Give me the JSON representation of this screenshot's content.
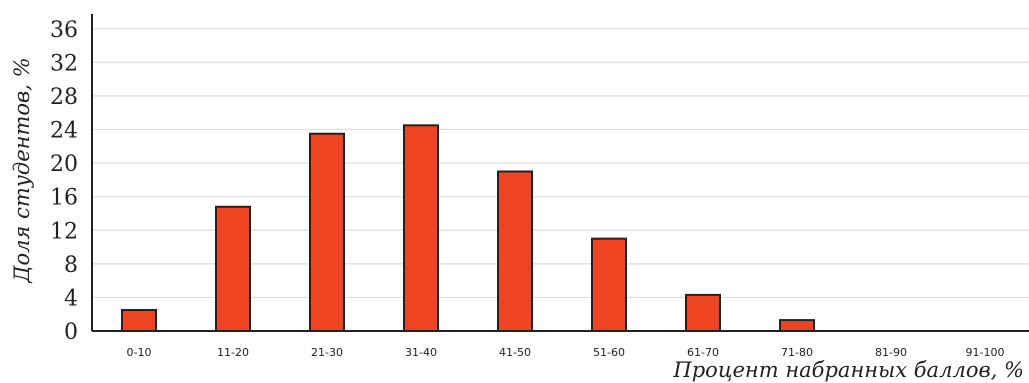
{
  "chart_data": {
    "type": "bar",
    "categories": [
      "0-10",
      "11-20",
      "21-30",
      "31-40",
      "41-50",
      "51-60",
      "61-70",
      "71-80",
      "81-90",
      "91-100"
    ],
    "values": [
      2.5,
      14.8,
      23.5,
      24.5,
      19.0,
      11.0,
      4.3,
      1.3,
      0,
      0
    ],
    "ylim": [
      0,
      38
    ],
    "yticks": [
      0,
      4,
      8,
      12,
      16,
      20,
      24,
      28,
      32,
      36
    ],
    "xlabel": "Процент набранных баллов, %",
    "ylabel": "Доля студентов, %",
    "grid": true,
    "bar_color": "#ee4422",
    "bar_edge_color": "#222222",
    "grid_color": "#dddddd"
  }
}
